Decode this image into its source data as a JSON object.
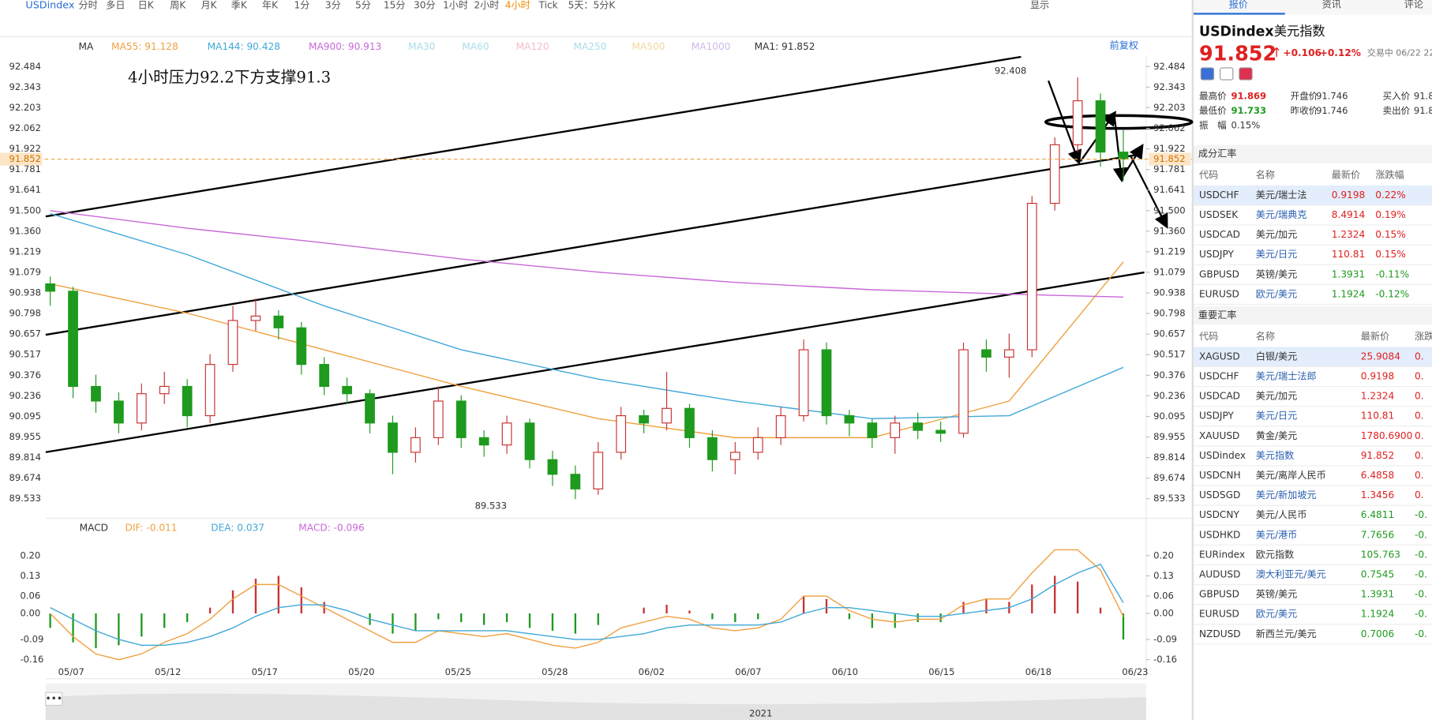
{
  "toolbar": {
    "symbol": "USDindex",
    "periods": [
      "分时",
      "多日",
      "日K",
      "周K",
      "月K",
      "季K",
      "年K",
      "1分",
      "3分",
      "5分",
      "15分",
      "30分",
      "1小时",
      "2小时",
      "4小时",
      "Tick",
      "5天：5分K"
    ],
    "active": 14,
    "display": "显示"
  },
  "chart_data": {
    "type": "candlestick",
    "title": "4小时压力92.2下方支撑91.3",
    "indicator": "MA",
    "adjust": "前复权",
    "ma_legend": [
      "MA55: 91.128",
      "MA144: 90.428",
      "MA900: 90.913",
      "MA30",
      "MA60",
      "MA120",
      "MA250",
      "MA500",
      "MA1000",
      "MA1: 91.852"
    ],
    "ma_legend_colors": [
      "#f0a040",
      "#40a8d8",
      "#c868d8",
      "#a8dce8",
      "#a8dce8",
      "#f0c0c8",
      "#a8dce8",
      "#f0d8a0",
      "#d0b8e8",
      "#333333"
    ],
    "ylim": [
      89.4,
      92.55
    ],
    "yticks": [
      92.484,
      92.343,
      92.203,
      92.062,
      91.922,
      91.781,
      91.641,
      {
        "value": 91.5,
        "label": "91.500"
      },
      {
        "value": 91.36,
        "label": "91.360"
      },
      91.219,
      91.079,
      90.938,
      90.798,
      90.657,
      90.517,
      90.376,
      90.236,
      90.095,
      89.955,
      89.814,
      89.674,
      89.533
    ],
    "last_price": 91.852,
    "high_label": 92.408,
    "low_label": 89.533,
    "dates": [
      "05/07",
      "05/12",
      "05/17",
      "05/20",
      "05/25",
      "05/28",
      "06/02",
      "06/07",
      "06/10",
      "06/15",
      "06/18",
      "06/23"
    ],
    "year": "2021",
    "candles": [
      [
        91.0,
        91.05,
        90.85,
        90.95
      ],
      [
        90.95,
        90.98,
        90.22,
        90.3
      ],
      [
        90.3,
        90.38,
        90.12,
        90.2
      ],
      [
        90.2,
        90.26,
        89.98,
        90.05
      ],
      [
        90.05,
        90.32,
        90.0,
        90.25
      ],
      [
        90.25,
        90.4,
        90.18,
        90.3
      ],
      [
        90.3,
        90.35,
        90.02,
        90.1
      ],
      [
        90.1,
        90.52,
        90.05,
        90.45
      ],
      [
        90.45,
        90.85,
        90.4,
        90.75
      ],
      [
        90.75,
        90.9,
        90.68,
        90.78
      ],
      [
        90.78,
        90.82,
        90.62,
        90.7
      ],
      [
        90.7,
        90.74,
        90.38,
        90.45
      ],
      [
        90.45,
        90.5,
        90.24,
        90.3
      ],
      [
        90.3,
        90.36,
        90.18,
        90.25
      ],
      [
        90.25,
        90.28,
        89.98,
        90.05
      ],
      [
        90.05,
        90.1,
        89.7,
        89.85
      ],
      [
        89.85,
        90.02,
        89.78,
        89.95
      ],
      [
        89.95,
        90.3,
        89.9,
        90.2
      ],
      [
        90.2,
        90.24,
        89.88,
        89.95
      ],
      [
        89.95,
        90.0,
        89.82,
        89.9
      ],
      [
        89.9,
        90.1,
        89.84,
        90.05
      ],
      [
        90.05,
        90.08,
        89.74,
        89.8
      ],
      [
        89.8,
        89.86,
        89.62,
        89.7
      ],
      [
        89.7,
        89.76,
        89.53,
        89.6
      ],
      [
        89.6,
        89.92,
        89.56,
        89.85
      ],
      [
        89.85,
        90.16,
        89.8,
        90.1
      ],
      [
        90.1,
        90.14,
        89.98,
        90.05
      ],
      [
        90.05,
        90.4,
        90.0,
        90.15
      ],
      [
        90.15,
        90.18,
        89.88,
        89.95
      ],
      [
        89.95,
        90.0,
        89.72,
        89.8
      ],
      [
        89.8,
        89.92,
        89.7,
        89.85
      ],
      [
        89.85,
        90.02,
        89.8,
        89.95
      ],
      [
        89.95,
        90.16,
        89.9,
        90.1
      ],
      [
        90.1,
        90.62,
        90.06,
        90.55
      ],
      [
        90.55,
        90.6,
        90.04,
        90.1
      ],
      [
        90.1,
        90.14,
        89.96,
        90.05
      ],
      [
        90.05,
        90.08,
        89.88,
        89.95
      ],
      [
        89.95,
        90.1,
        89.84,
        90.05
      ],
      [
        90.05,
        90.12,
        89.94,
        90.0
      ],
      [
        90.0,
        90.06,
        89.92,
        89.98
      ],
      [
        89.98,
        90.6,
        89.95,
        90.55
      ],
      [
        90.55,
        90.62,
        90.4,
        90.5
      ],
      [
        90.5,
        90.66,
        90.36,
        90.55
      ],
      [
        90.55,
        91.6,
        90.5,
        91.55
      ],
      [
        91.55,
        92.0,
        91.5,
        91.95
      ],
      [
        91.95,
        92.41,
        91.9,
        92.25
      ],
      [
        92.25,
        92.3,
        91.8,
        91.9
      ],
      [
        91.9,
        92.05,
        91.7,
        91.852
      ]
    ],
    "up_color": "#c83232",
    "down_color": "#1e9a1e",
    "ma_x": [
      0,
      6,
      12,
      18,
      24,
      30,
      36,
      42,
      47
    ],
    "ma": [
      {
        "name": "MA55",
        "color": "#f0a040",
        "values": [
          91.0,
          90.8,
          90.55,
          90.3,
          90.08,
          89.95,
          89.95,
          90.2,
          91.15
        ]
      },
      {
        "name": "MA144",
        "color": "#40a8d8",
        "values": [
          91.48,
          91.2,
          90.85,
          90.55,
          90.35,
          90.2,
          90.08,
          90.1,
          90.43
        ]
      },
      {
        "name": "MA900",
        "color": "#c868d8",
        "values": [
          91.5,
          91.38,
          91.28,
          91.17,
          91.08,
          91.01,
          90.96,
          90.93,
          90.91
        ]
      }
    ],
    "macd": {
      "name": "MACD",
      "legend": [
        "DIF: -0.011",
        "DEA: 0.037",
        "MACD: -0.096"
      ],
      "legend_colors": [
        "#f0a040",
        "#40a8d8",
        "#c868d8"
      ],
      "ylim": [
        -0.21,
        0.25
      ],
      "yticks": [
        {
          "value": 0.2,
          "label": "0.20"
        },
        0.13,
        0.06,
        {
          "value": 0,
          "label": "0.00"
        },
        -0.09,
        -0.16
      ],
      "hist": [
        -0.05,
        -0.1,
        -0.12,
        -0.11,
        -0.08,
        -0.05,
        -0.03,
        0.02,
        0.08,
        0.12,
        0.13,
        0.09,
        0.04,
        0.0,
        -0.04,
        -0.07,
        -0.06,
        -0.02,
        -0.03,
        -0.04,
        -0.03,
        -0.05,
        -0.06,
        -0.07,
        -0.04,
        0.0,
        0.02,
        0.03,
        0.01,
        -0.02,
        -0.03,
        -0.02,
        0.0,
        0.06,
        0.05,
        -0.02,
        -0.05,
        -0.05,
        -0.03,
        -0.03,
        0.04,
        0.05,
        0.04,
        0.1,
        0.13,
        0.11,
        0.02,
        -0.09
      ],
      "dif": [
        0.0,
        -0.08,
        -0.14,
        -0.16,
        -0.14,
        -0.1,
        -0.07,
        -0.02,
        0.05,
        0.1,
        0.1,
        0.06,
        0.02,
        -0.02,
        -0.06,
        -0.1,
        -0.1,
        -0.06,
        -0.07,
        -0.08,
        -0.07,
        -0.09,
        -0.11,
        -0.12,
        -0.1,
        -0.05,
        -0.03,
        -0.01,
        -0.02,
        -0.05,
        -0.06,
        -0.05,
        -0.02,
        0.06,
        0.06,
        0.01,
        -0.02,
        -0.03,
        -0.02,
        -0.02,
        0.03,
        0.05,
        0.05,
        0.14,
        0.22,
        0.22,
        0.15,
        -0.011
      ],
      "dea": [
        0.02,
        -0.02,
        -0.06,
        -0.09,
        -0.11,
        -0.11,
        -0.1,
        -0.08,
        -0.05,
        -0.01,
        0.02,
        0.03,
        0.03,
        0.01,
        -0.02,
        -0.04,
        -0.06,
        -0.06,
        -0.06,
        -0.06,
        -0.06,
        -0.07,
        -0.08,
        -0.09,
        -0.09,
        -0.08,
        -0.07,
        -0.05,
        -0.04,
        -0.04,
        -0.04,
        -0.04,
        -0.03,
        0.0,
        0.02,
        0.02,
        0.01,
        0.0,
        -0.01,
        -0.01,
        0.0,
        0.01,
        0.02,
        0.05,
        0.1,
        0.14,
        0.17,
        0.037
      ]
    }
  },
  "panel": {
    "tabs": [
      "报价",
      "资讯",
      "评论"
    ],
    "symbol": "USDindex",
    "name": "美元指数",
    "price": "91.852",
    "change": "+0.106",
    "pct": "+0.12%",
    "status": "交易中 06/22 22:",
    "stats": [
      [
        "最高价",
        "91.869",
        "开盘价",
        "91.746",
        "买入价",
        "91.8"
      ],
      [
        "最低价",
        "91.733",
        "昨收价",
        "91.746",
        "卖出价",
        "91.8"
      ],
      [
        "振　幅",
        "0.15%"
      ]
    ],
    "table1": {
      "title": "成分汇率",
      "header": [
        "代码",
        "名称",
        "最新价",
        "涨跌幅"
      ],
      "rows": [
        [
          "USDCHF",
          "美元/瑞士法",
          "0.9198",
          "0.22%"
        ],
        [
          "USDSEK",
          "美元/瑞典克",
          "8.4914",
          "0.19%"
        ],
        [
          "USDCAD",
          "美元/加元",
          "1.2324",
          "0.15%"
        ],
        [
          "USDJPY",
          "美元/日元",
          "110.81",
          "0.15%"
        ],
        [
          "GBPUSD",
          "英镑/美元",
          "1.3931",
          "-0.11%"
        ],
        [
          "EURUSD",
          "欧元/美元",
          "1.1924",
          "-0.12%"
        ]
      ]
    },
    "table2": {
      "title": "重要汇率",
      "header": [
        "代码",
        "名称",
        "最新价",
        "涨跌"
      ],
      "rows": [
        [
          "XAGUSD",
          "白银/美元",
          "25.9084",
          "0."
        ],
        [
          "USDCHF",
          "美元/瑞士法郎",
          "0.9198",
          "0."
        ],
        [
          "USDCAD",
          "美元/加元",
          "1.2324",
          "0."
        ],
        [
          "USDJPY",
          "美元/日元",
          "110.81",
          "0."
        ],
        [
          "XAUUSD",
          "黄金/美元",
          "1780.6900",
          "0."
        ],
        [
          "USDindex",
          "美元指数",
          "91.852",
          "0."
        ],
        [
          "USDCNH",
          "美元/离岸人民币",
          "6.4858",
          "0."
        ],
        [
          "USDSGD",
          "美元/新加坡元",
          "1.3456",
          "0."
        ],
        [
          "USDCNY",
          "美元/人民币",
          "6.4811",
          "-0."
        ],
        [
          "USDHKD",
          "美元/港币",
          "7.7656",
          "-0."
        ],
        [
          "EURindex",
          "欧元指数",
          "105.763",
          "-0."
        ],
        [
          "AUDUSD",
          "澳大利亚元/美元",
          "0.7545",
          "-0."
        ],
        [
          "GBPUSD",
          "英镑/美元",
          "1.3931",
          "-0."
        ],
        [
          "EURUSD",
          "欧元/美元",
          "1.1924",
          "-0."
        ],
        [
          "NZDUSD",
          "新西兰元/美元",
          "0.7006",
          "-0."
        ]
      ]
    }
  }
}
